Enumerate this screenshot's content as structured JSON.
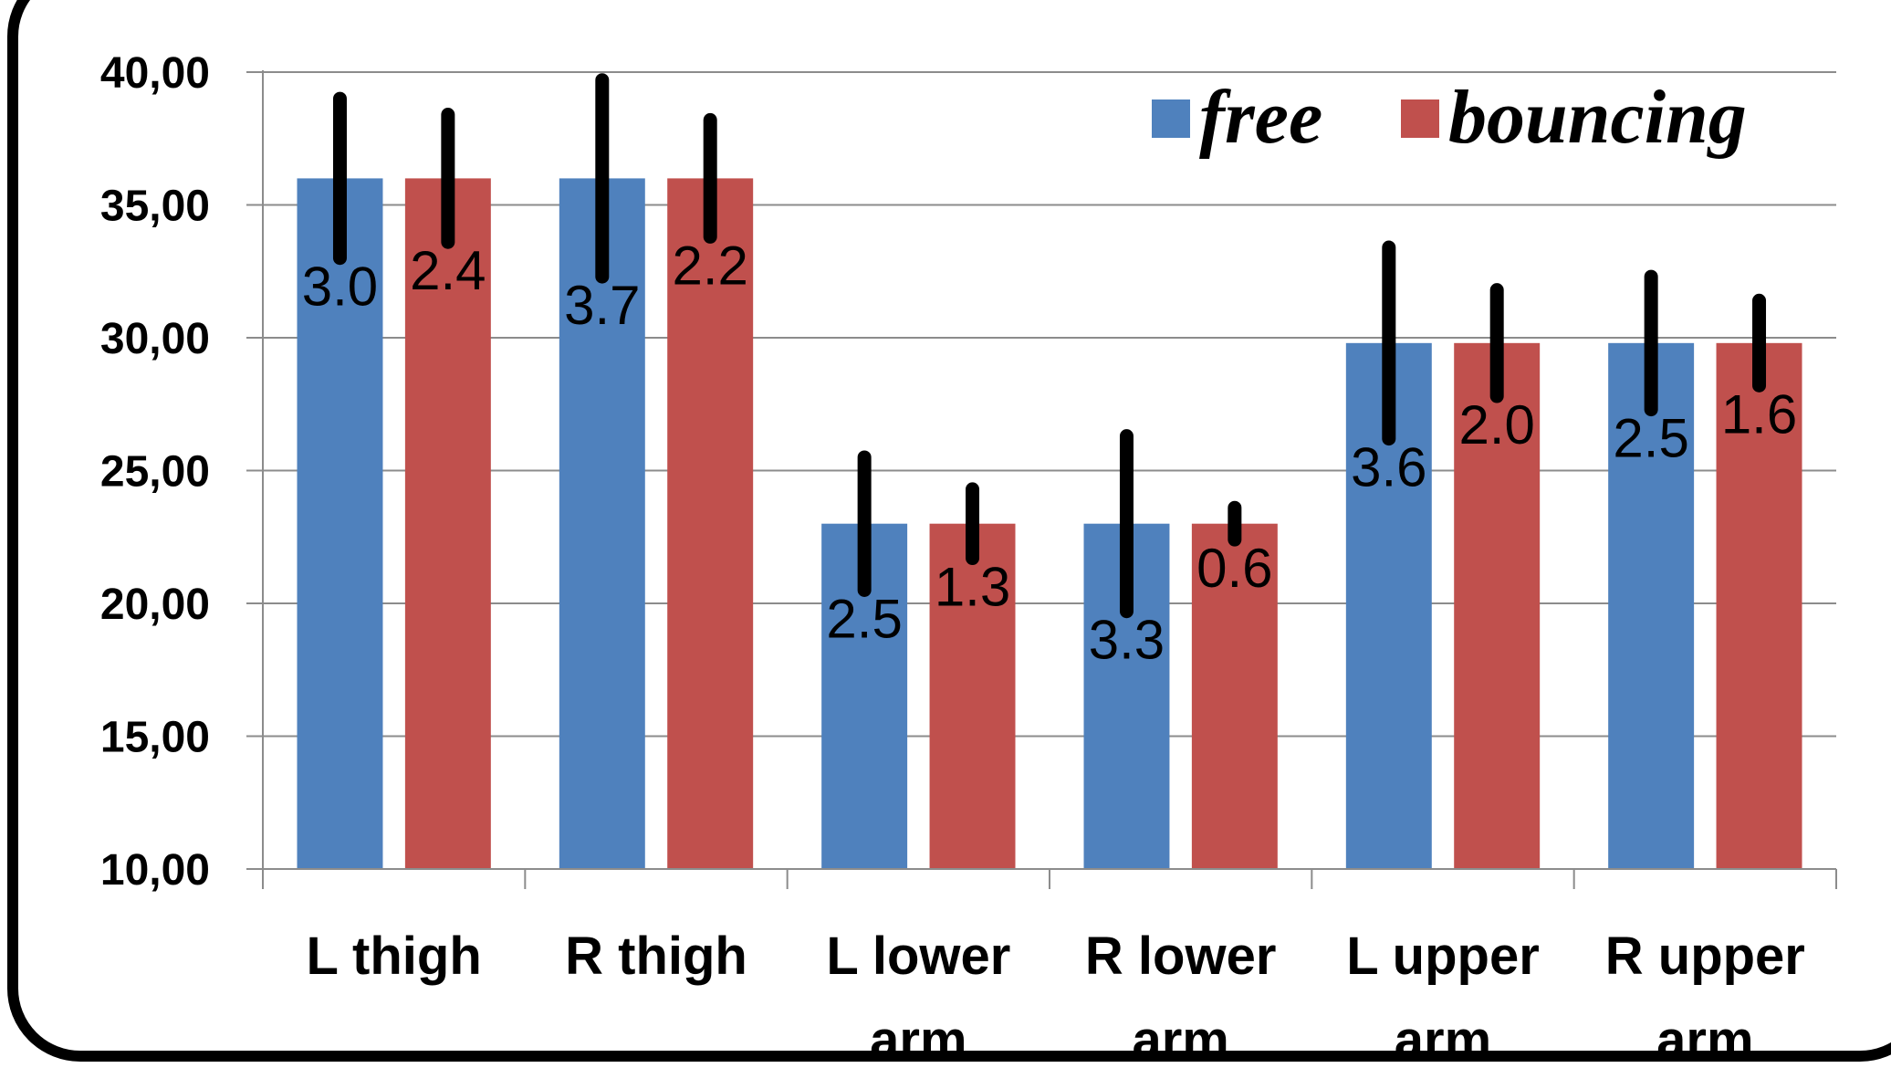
{
  "chart_data": {
    "type": "bar",
    "categories": [
      [
        "L thigh"
      ],
      [
        "R thigh"
      ],
      [
        "L lower",
        "arm"
      ],
      [
        "R lower",
        "arm"
      ],
      [
        "L upper",
        "arm"
      ],
      [
        "R upper",
        "arm"
      ]
    ],
    "series": [
      {
        "name": "free",
        "color": "#4f81bd",
        "values": [
          36.0,
          36.0,
          23.0,
          23.0,
          29.8,
          29.8
        ],
        "errors": [
          3.0,
          3.7,
          2.5,
          3.3,
          3.6,
          2.5
        ],
        "labels": [
          "3.0",
          "3.7",
          "2.5",
          "3.3",
          "3.6",
          "2.5"
        ]
      },
      {
        "name": "bouncing",
        "color": "#c0504d",
        "values": [
          36.0,
          36.0,
          23.0,
          23.0,
          29.8,
          29.8
        ],
        "errors": [
          2.4,
          2.2,
          1.3,
          0.6,
          2.0,
          1.6
        ],
        "labels": [
          "2.4",
          "2.2",
          "1.3",
          "0.6",
          "2.0",
          "1.6"
        ]
      }
    ],
    "ylim": [
      10,
      40
    ],
    "yticks": [
      "10,00",
      "15,00",
      "20,00",
      "25,00",
      "30,00",
      "35,00",
      "40,00"
    ],
    "yticks_values": [
      10,
      15,
      20,
      25,
      30,
      35,
      40
    ],
    "grid": true,
    "legend_position": "top-right"
  }
}
